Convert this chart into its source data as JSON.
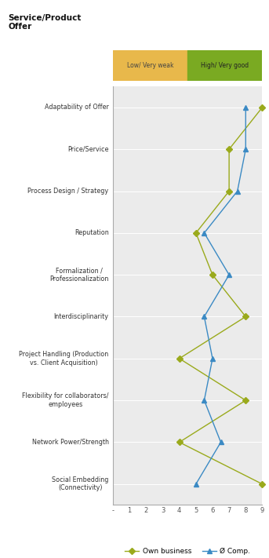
{
  "title": "Service/Product\nOffer",
  "categories": [
    "Adaptability of Offer",
    "Price/Service",
    "Process Design / Strategy",
    "Reputation",
    "Formalization /\nProfessionalization",
    "Interdisciplinarity",
    "Project Handling (Production\nvs. Client Acquisition)",
    "Flexibility for collaborators/\nemployees",
    "Network Power/Strength",
    "Social Embedding\n(Connectivity)"
  ],
  "own_business": [
    9,
    7,
    7,
    5,
    6,
    8,
    4,
    8,
    4,
    9
  ],
  "avg_competitors": [
    8,
    8,
    7.5,
    5.5,
    7,
    5.5,
    6,
    5.5,
    6.5,
    5
  ],
  "own_color": "#9aaa1c",
  "comp_color": "#3b8ac4",
  "own_label": "Own business",
  "comp_label": "Ø Comp.",
  "low_weak_color": "#e8b84b",
  "high_good_color": "#7aaa22",
  "low_weak_label": "Low/ Very weak",
  "high_good_label": "High/ Very good",
  "plot_bg_color": "#ebebeb",
  "outer_background": "#ffffff",
  "figsize": [
    3.43,
    7.11
  ],
  "dpi": 100
}
